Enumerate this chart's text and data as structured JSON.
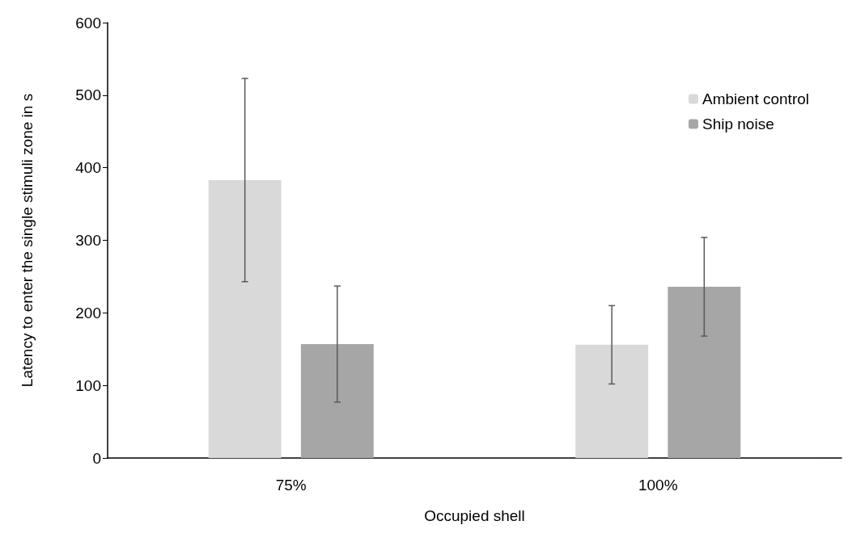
{
  "chart_data": {
    "type": "bar",
    "xlabel": "Occupied shell",
    "ylabel": "Latency to enter the single stimuli zone in s",
    "categories": [
      "75%",
      "100%"
    ],
    "series": [
      {
        "name": "Ambient control",
        "color": "#d9d9d9",
        "values": [
          383,
          156
        ],
        "errors": [
          140,
          54
        ]
      },
      {
        "name": "Ship noise",
        "color": "#a6a6a6",
        "values": [
          157,
          236
        ],
        "errors": [
          80,
          68
        ]
      }
    ],
    "ylim": [
      0,
      600
    ],
    "yticks": [
      0,
      100,
      200,
      300,
      400,
      500,
      600
    ],
    "grid": false,
    "legend": "top right"
  }
}
